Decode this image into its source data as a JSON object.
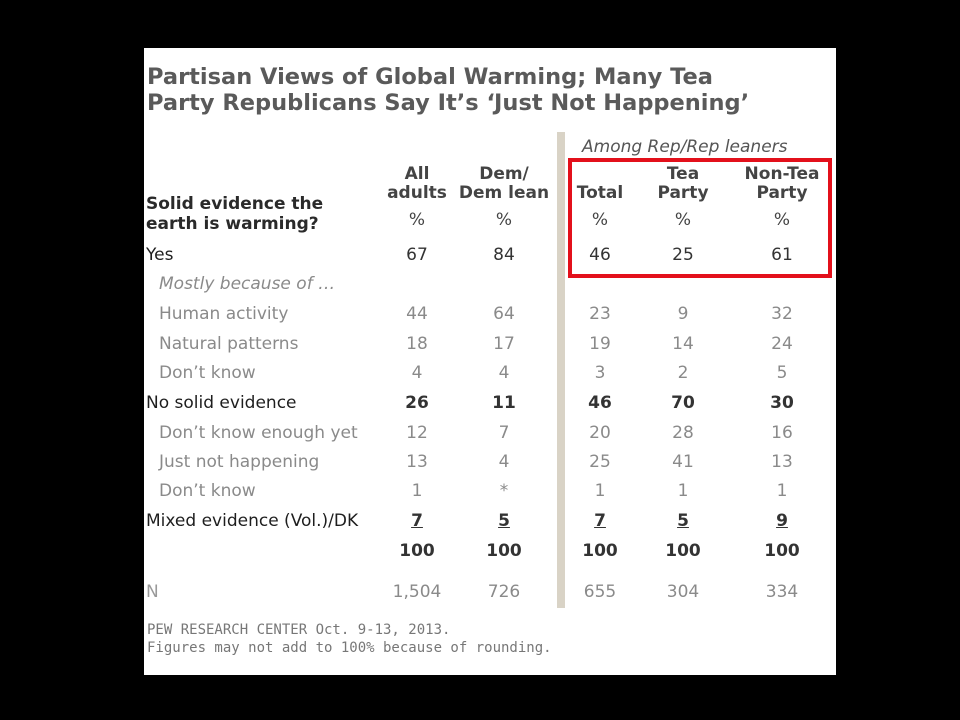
{
  "chart_data": {
    "type": "table",
    "title_lines": [
      "Partisan Views of Global Warming; Many Tea",
      "Party Republicans Say It’s ‘Just Not Happening’"
    ],
    "group_header": "Among Rep/Rep leaners",
    "question_lines": [
      "Solid evidence the",
      "earth is warming?"
    ],
    "columns": [
      {
        "line1": "All",
        "line2": "adults",
        "unit": "%"
      },
      {
        "line1": "Dem/",
        "line2": "Dem lean",
        "unit": "%"
      },
      {
        "line1": "",
        "line2": "Total",
        "unit": "%"
      },
      {
        "line1": "Tea",
        "line2": "Party",
        "unit": "%"
      },
      {
        "line1": "Non-Tea",
        "line2": "Party",
        "unit": "%"
      }
    ],
    "rows": [
      {
        "label": "Yes",
        "style": "main",
        "values": [
          "67",
          "84",
          "46",
          "25",
          "61"
        ]
      },
      {
        "label": "Mostly because of …",
        "style": "note",
        "values": [
          "",
          "",
          "",
          "",
          ""
        ]
      },
      {
        "label": "Human activity",
        "style": "sub",
        "values": [
          "44",
          "64",
          "23",
          "9",
          "32"
        ]
      },
      {
        "label": "Natural patterns",
        "style": "sub",
        "values": [
          "18",
          "17",
          "19",
          "14",
          "24"
        ]
      },
      {
        "label": "Don’t know",
        "style": "sub",
        "values": [
          "4",
          "4",
          "3",
          "2",
          "5"
        ]
      },
      {
        "label": "No solid evidence",
        "style": "bold",
        "values": [
          "26",
          "11",
          "46",
          "70",
          "30"
        ]
      },
      {
        "label": "Don’t know enough yet",
        "style": "sub",
        "values": [
          "12",
          "7",
          "20",
          "28",
          "16"
        ]
      },
      {
        "label": "Just not happening",
        "style": "sub",
        "values": [
          "13",
          "4",
          "25",
          "41",
          "13"
        ]
      },
      {
        "label": "Don’t know",
        "style": "sub",
        "values": [
          "1",
          "*",
          "1",
          "1",
          "1"
        ]
      },
      {
        "label": "Mixed evidence (Vol.)/DK",
        "style": "und",
        "values": [
          "7",
          "5",
          "7",
          "5",
          "9"
        ]
      },
      {
        "label": "",
        "style": "bold",
        "values": [
          "100",
          "100",
          "100",
          "100",
          "100"
        ]
      },
      {
        "label": "N",
        "style": "nv",
        "values": [
          "1,504",
          "726",
          "655",
          "304",
          "334"
        ]
      }
    ],
    "source_lines": [
      "PEW RESEARCH CENTER Oct. 9-13, 2013.",
      "Figures may not add to 100% because of rounding."
    ],
    "highlight_color": "#e3101b"
  }
}
